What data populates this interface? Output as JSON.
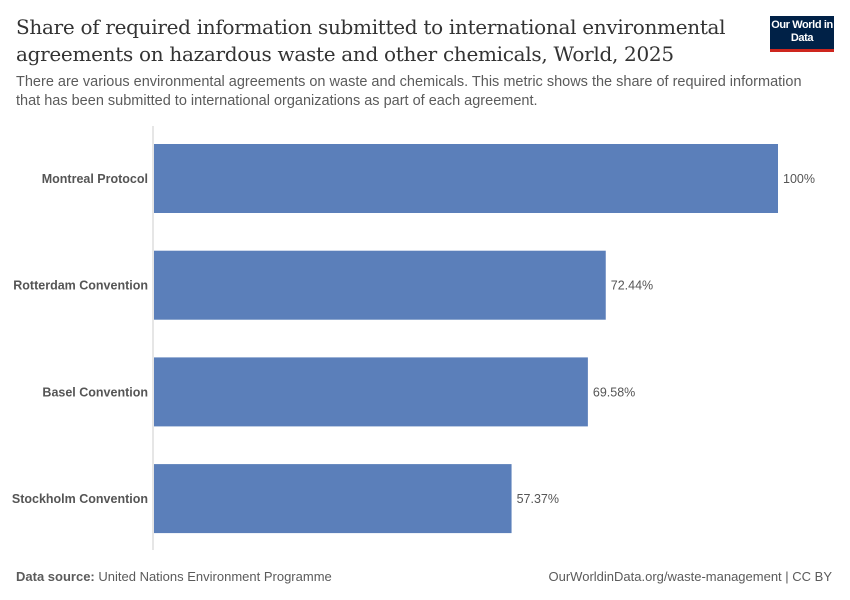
{
  "header": {
    "title": "Share of required information submitted to international environmental agreements on hazardous waste and other chemicals, World, 2025",
    "subtitle": "There are various environmental agreements on waste and chemicals. This metric shows the share of required information that has been submitted to international organizations as part of each agreement.",
    "logo": "Our World in Data"
  },
  "footer": {
    "source_label": "Data source:",
    "source": "United Nations Environment Programme",
    "url": "OurWorldinData.org/waste-management | CC BY"
  },
  "colors": {
    "bar": "#5b7fba",
    "logo_bg": "#002147",
    "logo_accent": "#ce261e"
  },
  "chart_data": {
    "type": "bar",
    "orientation": "horizontal",
    "categories": [
      "Montreal Protocol",
      "Rotterdam Convention",
      "Basel Convention",
      "Stockholm Convention"
    ],
    "values": [
      100,
      72.44,
      69.58,
      57.37
    ],
    "value_labels": [
      "100%",
      "72.44%",
      "69.58%",
      "57.37%"
    ],
    "unit": "%",
    "xlim": [
      0,
      100
    ],
    "grid": false
  }
}
